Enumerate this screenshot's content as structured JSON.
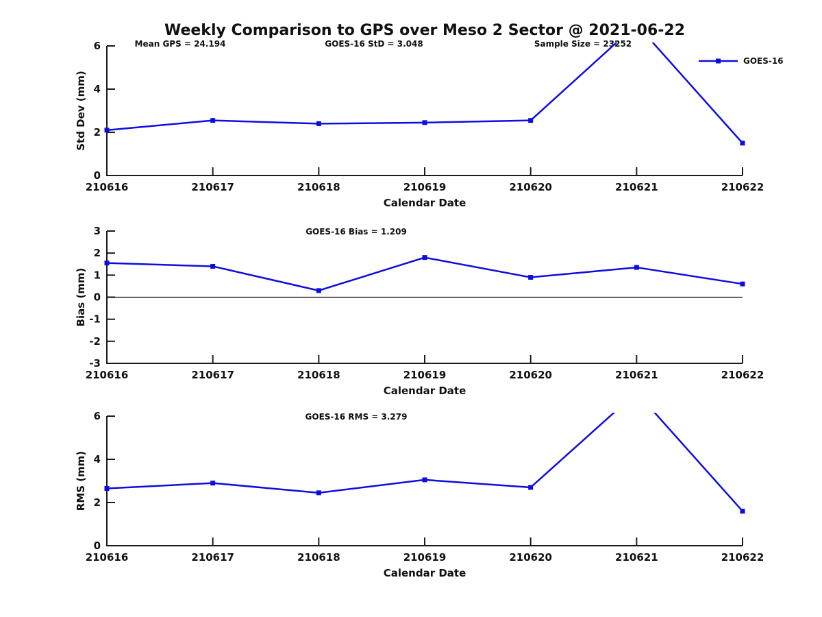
{
  "figure": {
    "title": "Weekly Comparison to GPS over Meso 2 Sector @ 2021-06-22"
  },
  "colors": {
    "line": "#0d0de0",
    "axis": "#1a1a1a",
    "text": "#111111",
    "zero_line": "#000000"
  },
  "legend": {
    "label": "GOES-16"
  },
  "chart_data": [
    {
      "type": "line",
      "name": "std-dev",
      "title": "",
      "categories": [
        "210616",
        "210617",
        "210618",
        "210619",
        "210620",
        "210621",
        "210622"
      ],
      "series": [
        {
          "name": "GOES-16",
          "values": [
            2.1,
            2.55,
            2.4,
            2.45,
            2.55,
            7.0,
            1.5
          ]
        }
      ],
      "xlabel": "Calendar Date",
      "ylabel": "Std Dev (mm)",
      "ylim": [
        0,
        6
      ],
      "yticks": [
        0,
        2,
        4,
        6
      ],
      "clip_at_ylim": true,
      "grid": false,
      "legend": {
        "label": "GOES-16",
        "position": "top-right-outside"
      },
      "annotations": [
        {
          "text": "Mean GPS = 24.194",
          "x_center": 263
        },
        {
          "text": "GOES-16 StD = 3.048",
          "x_center": 546
        },
        {
          "text": "Sample Size = 23252",
          "x_center": 851
        }
      ]
    },
    {
      "type": "line",
      "name": "bias",
      "title": "GOES-16 Bias  = 1.209",
      "categories": [
        "210616",
        "210617",
        "210618",
        "210619",
        "210620",
        "210621",
        "210622"
      ],
      "series": [
        {
          "name": "GOES-16",
          "values": [
            1.55,
            1.4,
            0.3,
            1.8,
            0.9,
            1.35,
            0.6
          ]
        }
      ],
      "xlabel": "Calendar Date",
      "ylabel": "Bias (mm)",
      "ylim": [
        -3,
        3
      ],
      "yticks": [
        -3,
        -2,
        -1,
        0,
        1,
        2,
        3
      ],
      "zero_line": true,
      "clip_at_ylim": true,
      "grid": false,
      "annotations": []
    },
    {
      "type": "line",
      "name": "rms",
      "title": "GOES-16 RMS = 3.279",
      "categories": [
        "210616",
        "210617",
        "210618",
        "210619",
        "210620",
        "210621",
        "210622"
      ],
      "series": [
        {
          "name": "GOES-16",
          "values": [
            2.65,
            2.9,
            2.45,
            3.05,
            2.7,
            7.1,
            1.6
          ]
        }
      ],
      "xlabel": "Calendar Date",
      "ylabel": "RMS (mm)",
      "ylim": [
        0,
        6
      ],
      "yticks": [
        0,
        2,
        4,
        6
      ],
      "clip_at_ylim": true,
      "grid": false,
      "annotations": []
    }
  ]
}
